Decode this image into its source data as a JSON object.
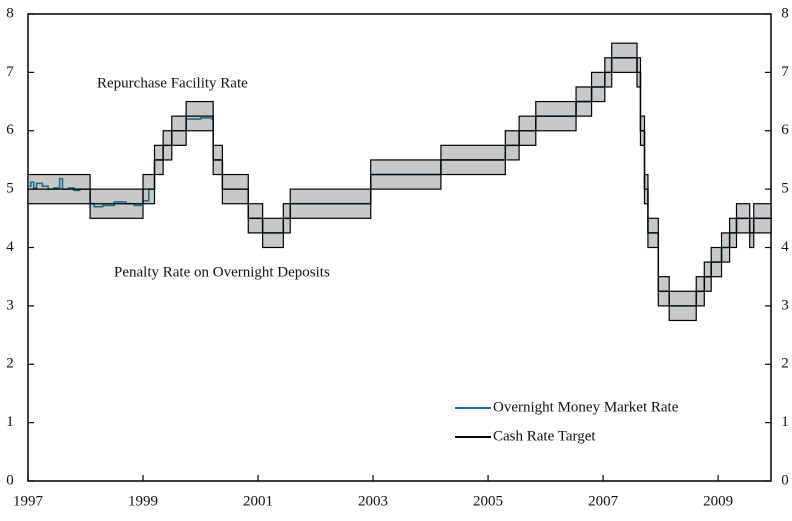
{
  "chart_data": {
    "type": "step",
    "xlim": [
      1997,
      2009.92
    ],
    "xticks": [
      1997,
      1999,
      2001,
      2003,
      2005,
      2007,
      2009
    ],
    "ylim": [
      0,
      8
    ],
    "yticks": [
      0,
      1,
      2,
      3,
      4,
      5,
      6,
      7,
      8
    ],
    "y2lim": [
      0,
      8
    ],
    "y2ticks": [
      0,
      1,
      2,
      3,
      4,
      5,
      6,
      7,
      8
    ],
    "band_color": "#c8c8c8",
    "band": [
      {
        "name": "Repurchase Facility Rate",
        "x": [
          1997.0,
          1998.08,
          1999.0,
          1999.2,
          1999.35,
          1999.5,
          1999.75,
          2000.22,
          2000.38,
          2000.83,
          2001.08,
          2001.44,
          2001.56,
          2002.96,
          2004.18,
          2005.3,
          2005.54,
          2005.83,
          2006.53,
          2006.8,
          2007.03,
          2007.15,
          2007.59,
          2007.65,
          2007.72,
          2007.78,
          2007.96,
          2008.15,
          2008.62,
          2008.76,
          2008.88,
          2009.06,
          2009.2,
          2009.32,
          2009.55,
          2009.62,
          2009.92
        ],
        "values": [
          5.25,
          5.0,
          5.25,
          5.75,
          6.0,
          6.25,
          6.5,
          5.75,
          5.25,
          4.75,
          4.5,
          4.75,
          5.0,
          5.5,
          5.75,
          6.0,
          6.25,
          6.5,
          6.75,
          7.0,
          7.25,
          7.5,
          7.25,
          6.25,
          5.25,
          4.5,
          3.5,
          3.25,
          3.5,
          3.75,
          4.0,
          4.25,
          4.5,
          4.75,
          4.5,
          4.75,
          4.75
        ]
      },
      {
        "name": "Penalty Rate on Overnight Deposits",
        "x": [
          1997.0,
          1998.08,
          1999.0,
          1999.2,
          1999.35,
          1999.5,
          1999.75,
          2000.22,
          2000.38,
          2000.83,
          2001.08,
          2001.44,
          2001.56,
          2002.96,
          2004.18,
          2005.3,
          2005.54,
          2005.83,
          2006.53,
          2006.8,
          2007.03,
          2007.15,
          2007.59,
          2007.65,
          2007.72,
          2007.78,
          2007.96,
          2008.15,
          2008.62,
          2008.76,
          2008.88,
          2009.06,
          2009.2,
          2009.32,
          2009.55,
          2009.62,
          2009.92
        ],
        "values": [
          4.75,
          4.5,
          4.75,
          5.25,
          5.5,
          5.75,
          6.0,
          5.25,
          4.75,
          4.25,
          4.0,
          4.25,
          4.5,
          5.0,
          5.25,
          5.5,
          5.75,
          6.0,
          6.25,
          6.5,
          6.75,
          7.0,
          6.75,
          5.75,
          4.75,
          4.0,
          3.0,
          2.75,
          3.0,
          3.25,
          3.5,
          3.75,
          4.0,
          4.25,
          4.0,
          4.25,
          4.25
        ]
      }
    ],
    "series": [
      {
        "name": "Overnight Money Market Rate",
        "color": "#1f6e8c",
        "x": [
          1997.0,
          1997.05,
          1997.1,
          1997.15,
          1997.25,
          1997.35,
          1997.45,
          1997.55,
          1997.6,
          1997.7,
          1997.8,
          1997.9,
          1998.0,
          1998.08,
          1998.15,
          1998.3,
          1998.5,
          1998.7,
          1998.85,
          1999.0,
          1999.1,
          1999.2,
          1999.35,
          1999.5,
          1999.75,
          2000.0,
          2000.2,
          2000.22,
          2000.38,
          2000.83,
          2001.08,
          2001.44,
          2001.56,
          2002.96,
          2004.18,
          2005.3,
          2005.54,
          2005.83,
          2006.53,
          2006.8,
          2007.03,
          2007.15,
          2007.59,
          2007.65,
          2007.72,
          2007.78,
          2007.96,
          2008.15,
          2008.62,
          2008.76,
          2008.88,
          2009.06,
          2009.2,
          2009.32,
          2009.55,
          2009.62,
          2009.92
        ],
        "values": [
          5.05,
          5.12,
          5.02,
          5.1,
          5.05,
          5.0,
          5.02,
          5.18,
          5.0,
          5.02,
          4.98,
          5.0,
          5.0,
          4.75,
          4.7,
          4.72,
          4.78,
          4.75,
          4.72,
          4.8,
          5.0,
          5.5,
          5.75,
          6.0,
          6.2,
          6.22,
          6.2,
          5.5,
          5.0,
          4.5,
          4.25,
          4.5,
          4.75,
          5.25,
          5.5,
          5.75,
          6.0,
          6.25,
          6.5,
          6.75,
          7.0,
          7.25,
          7.0,
          6.0,
          5.0,
          4.25,
          3.25,
          3.0,
          3.25,
          3.5,
          3.75,
          4.0,
          4.25,
          4.5,
          4.25,
          4.5,
          4.5
        ]
      },
      {
        "name": "Cash Rate Target",
        "color": "#000000",
        "x": [
          1997.0,
          1998.08,
          1999.0,
          1999.2,
          1999.35,
          1999.5,
          1999.75,
          2000.22,
          2000.38,
          2000.83,
          2001.08,
          2001.44,
          2001.56,
          2002.96,
          2004.18,
          2005.3,
          2005.54,
          2005.83,
          2006.53,
          2006.8,
          2007.03,
          2007.15,
          2007.59,
          2007.65,
          2007.72,
          2007.78,
          2007.96,
          2008.15,
          2008.62,
          2008.76,
          2008.88,
          2009.06,
          2009.2,
          2009.32,
          2009.55,
          2009.62,
          2009.92
        ],
        "values": [
          5.0,
          4.75,
          5.0,
          5.5,
          5.75,
          6.0,
          6.25,
          5.5,
          5.0,
          4.5,
          4.25,
          4.5,
          4.75,
          5.25,
          5.5,
          5.75,
          6.0,
          6.25,
          6.5,
          6.75,
          7.0,
          7.25,
          7.0,
          6.0,
          5.0,
          4.25,
          3.25,
          3.0,
          3.25,
          3.5,
          3.75,
          4.0,
          4.25,
          4.5,
          4.25,
          4.5,
          4.5
        ]
      }
    ],
    "legend": "lower right"
  }
}
